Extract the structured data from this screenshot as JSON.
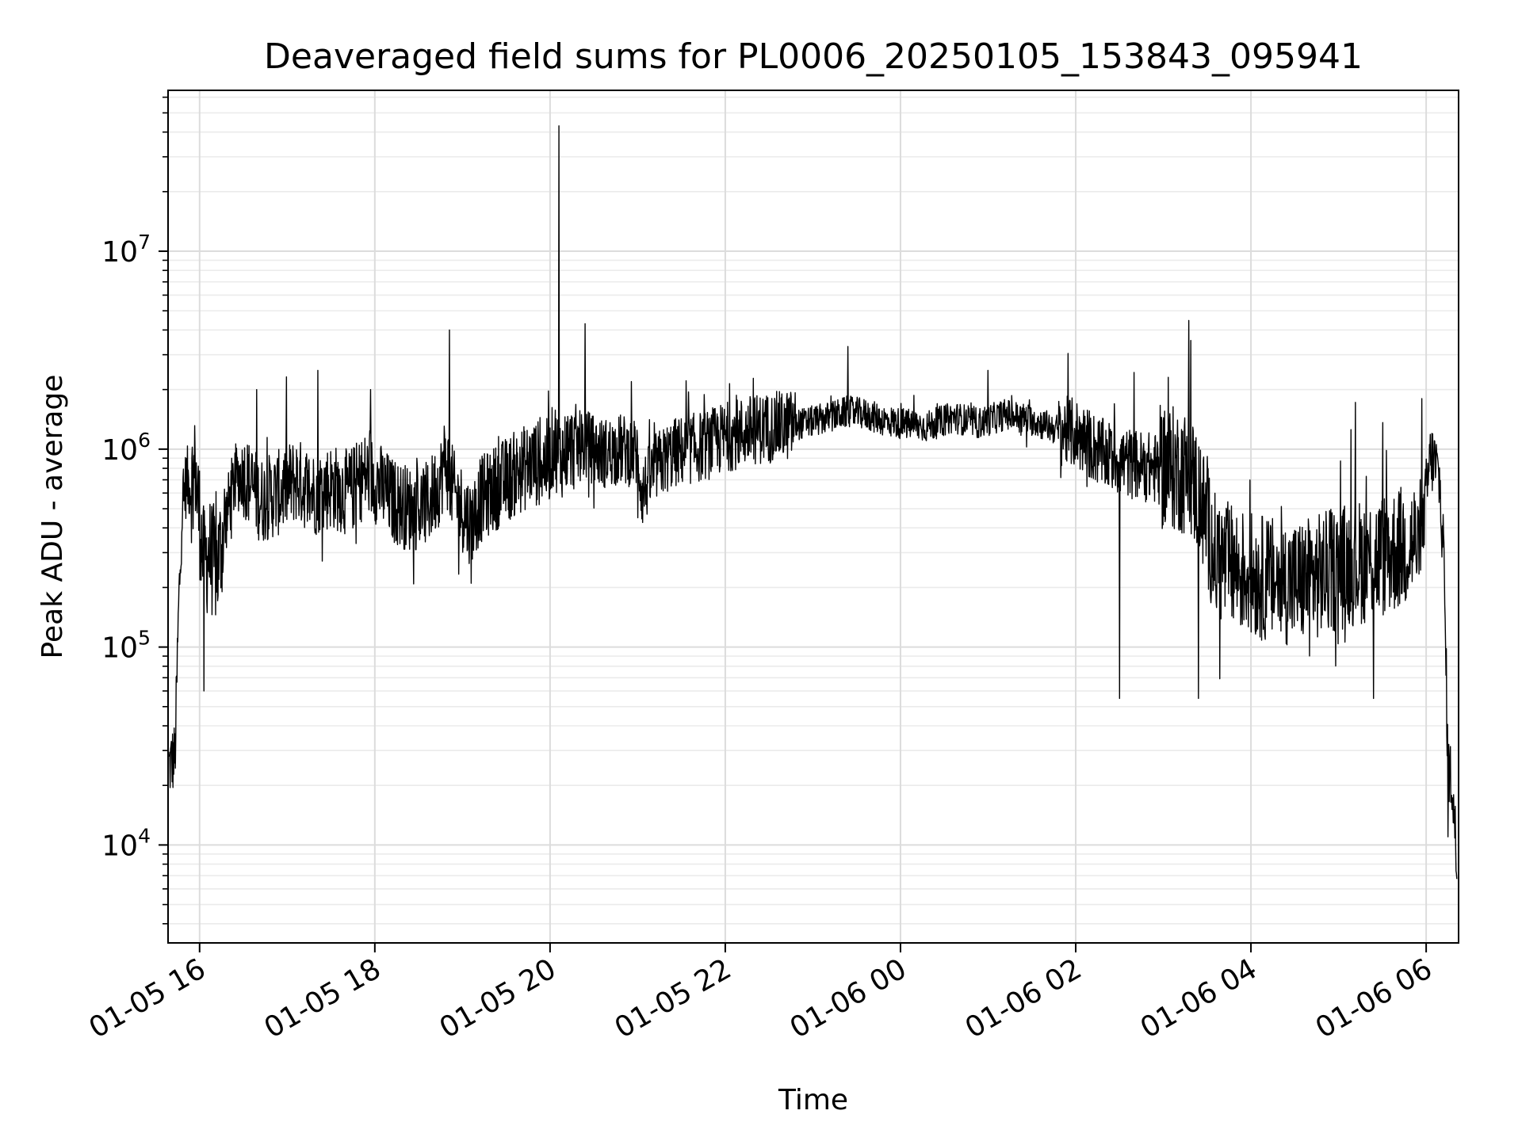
{
  "chart_data": {
    "type": "line",
    "title": "Deaveraged field sums for PL0006_20250105_153843_095941",
    "xlabel": "Time",
    "ylabel": "Peak ADU - average",
    "yscale": "log",
    "grid": "both (major and minor)",
    "line_color": "#000000",
    "x_tick_labels": [
      "01-05 16",
      "01-05 18",
      "01-05 20",
      "01-05 22",
      "01-06 00",
      "01-06 02",
      "01-06 04",
      "01-06 06"
    ],
    "x_ticks_hours": [
      16,
      18,
      20,
      22,
      24,
      26,
      28,
      30
    ],
    "y_tick_exponents": [
      4,
      5,
      6,
      7
    ],
    "xlim_hours": [
      15.64,
      30.37
    ],
    "ylim": [
      3200,
      65000000
    ],
    "series": [
      {
        "values_note_x_unit": "hours from 2025-01-05 00:00",
        "x": [
          15.65,
          15.72,
          15.76,
          15.8,
          15.85,
          15.9,
          15.95,
          16.0,
          16.05,
          16.1,
          16.2,
          16.3,
          16.4,
          16.5,
          16.7,
          16.9,
          17.1,
          17.3,
          17.5,
          17.7,
          17.9,
          18.0,
          18.2,
          18.4,
          18.6,
          18.75,
          18.8,
          18.9,
          19.0,
          19.1,
          19.2,
          19.4,
          19.6,
          19.8,
          19.95,
          20.0,
          20.05,
          20.1,
          20.2,
          20.4,
          20.6,
          20.8,
          21.0,
          21.05,
          21.2,
          21.4,
          21.6,
          21.8,
          22.0,
          22.3,
          22.6,
          22.9,
          23.2,
          23.4,
          23.6,
          23.8,
          24.0,
          24.3,
          24.6,
          24.9,
          25.2,
          25.5,
          25.8,
          26.0,
          26.3,
          26.6,
          26.9,
          27.1,
          27.3,
          27.4,
          27.6,
          27.9,
          28.2,
          28.5,
          28.8,
          29.1,
          29.4,
          29.6,
          29.8,
          29.95,
          30.0,
          30.05,
          30.1,
          30.15,
          30.2,
          30.25,
          30.3,
          30.35
        ],
        "values": [
          25000,
          28000,
          150000,
          500000,
          700000,
          650000,
          750000,
          450000,
          250000,
          300000,
          250000,
          450000,
          700000,
          750000,
          550000,
          600000,
          700000,
          600000,
          650000,
          600000,
          750000,
          700000,
          550000,
          500000,
          520000,
          700000,
          900000,
          600000,
          500000,
          420000,
          550000,
          650000,
          750000,
          850000,
          850000,
          900000,
          1100000,
          900000,
          1000000,
          1050000,
          950000,
          1000000,
          950000,
          600000,
          800000,
          950000,
          1000000,
          1050000,
          1150000,
          1250000,
          1300000,
          1350000,
          1450000,
          1550000,
          1500000,
          1400000,
          1350000,
          1300000,
          1450000,
          1350000,
          1500000,
          1400000,
          1250000,
          1200000,
          950000,
          850000,
          800000,
          800000,
          750000,
          600000,
          280000,
          240000,
          220000,
          210000,
          230000,
          260000,
          280000,
          300000,
          330000,
          350000,
          600000,
          900000,
          850000,
          700000,
          300000,
          25000,
          20000,
          8000
        ],
        "spikes": [
          {
            "x": 15.95,
            "value": 950000
          },
          {
            "x": 16.05,
            "value": 60000
          },
          {
            "x": 16.65,
            "value": 2000000
          },
          {
            "x": 17.35,
            "value": 2500000
          },
          {
            "x": 17.95,
            "value": 2000000
          },
          {
            "x": 18.85,
            "value": 4000000
          },
          {
            "x": 19.1,
            "value": 210000
          },
          {
            "x": 20.1,
            "value": 43000000
          },
          {
            "x": 20.4,
            "value": 4300000
          },
          {
            "x": 21.0,
            "value": 450000
          },
          {
            "x": 23.4,
            "value": 3300000
          },
          {
            "x": 25.0,
            "value": 2500000
          },
          {
            "x": 26.4,
            "value": 1200000
          },
          {
            "x": 26.5,
            "value": 55000
          },
          {
            "x": 27.4,
            "value": 55000
          },
          {
            "x": 29.4,
            "value": 55000
          },
          {
            "x": 29.95,
            "value": 1800000
          },
          {
            "x": 30.25,
            "value": 11000
          }
        ]
      }
    ]
  }
}
